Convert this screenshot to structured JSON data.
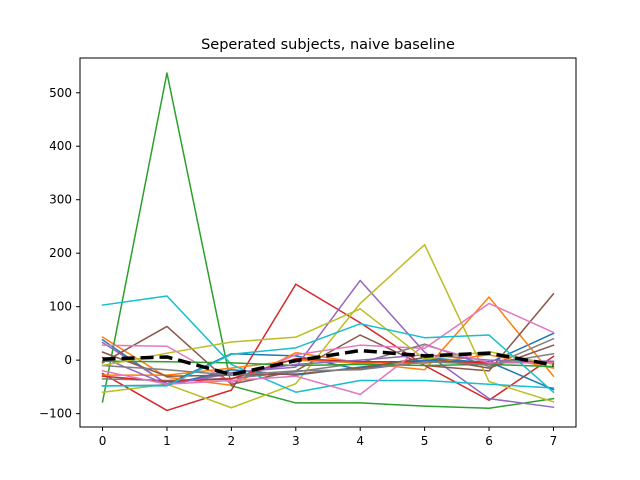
{
  "chart_data": {
    "type": "line",
    "title": "Seperated subjects, naive baseline",
    "xlabel": "",
    "ylabel": "",
    "x": [
      0,
      1,
      2,
      3,
      4,
      5,
      6,
      7
    ],
    "xticks": [
      "0",
      "1",
      "2",
      "3",
      "4",
      "5",
      "6",
      "7"
    ],
    "yticks": [
      "−100",
      "0",
      "100",
      "200",
      "300",
      "400",
      "500"
    ],
    "xlim": [
      -0.35,
      7.35
    ],
    "ylim": [
      -125,
      565
    ],
    "grid": false,
    "legend": "none",
    "series": [
      {
        "color": "#1f77b4",
        "values": [
          38,
          -45,
          12,
          8,
          -18,
          5,
          -5,
          50
        ]
      },
      {
        "color": "#ff7f0e",
        "values": [
          43,
          -32,
          -47,
          14,
          -5,
          -18,
          118,
          -30
        ]
      },
      {
        "color": "#2ca02c",
        "values": [
          -78,
          537,
          -48,
          -80,
          -80,
          -86,
          -90,
          -72
        ]
      },
      {
        "color": "#d62728",
        "values": [
          -25,
          -94,
          -56,
          142,
          70,
          -10,
          -75,
          7
        ]
      },
      {
        "color": "#9467bd",
        "values": [
          33,
          -44,
          -23,
          -13,
          149,
          15,
          -72,
          -88
        ]
      },
      {
        "color": "#8c564b",
        "values": [
          -5,
          63,
          -45,
          -20,
          47,
          -10,
          -20,
          124
        ]
      },
      {
        "color": "#e377c2",
        "values": [
          28,
          26,
          -42,
          10,
          28,
          22,
          106,
          52
        ]
      },
      {
        "color": "#7f7f7f",
        "values": [
          -35,
          -38,
          -34,
          -22,
          -5,
          30,
          -12,
          40
        ]
      },
      {
        "color": "#bcbd22",
        "values": [
          -60,
          -45,
          -89,
          -44,
          106,
          216,
          -40,
          -78
        ]
      },
      {
        "color": "#17becf",
        "values": [
          103,
          120,
          -8,
          -60,
          -38,
          -38,
          -45,
          -52
        ]
      },
      {
        "color": "#1f77b4",
        "values": [
          -48,
          -47,
          -18,
          -28,
          -13,
          0,
          -3,
          -55
        ]
      },
      {
        "color": "#ff7f0e",
        "values": [
          -28,
          -28,
          -15,
          0,
          -5,
          -6,
          10,
          -15
        ]
      },
      {
        "color": "#2ca02c",
        "values": [
          -2,
          -3,
          -5,
          -10,
          -8,
          -10,
          -8,
          -12
        ]
      },
      {
        "color": "#d62728",
        "values": [
          -30,
          -40,
          -35,
          3,
          -3,
          -3,
          -5,
          -3
        ]
      },
      {
        "color": "#9467bd",
        "values": [
          5,
          -46,
          -25,
          -8,
          0,
          10,
          0,
          -2
        ]
      },
      {
        "color": "#8c564b",
        "values": [
          15,
          -30,
          -28,
          -26,
          -15,
          5,
          -15,
          28
        ]
      },
      {
        "color": "#e377c2",
        "values": [
          -20,
          -45,
          -38,
          -30,
          -64,
          28,
          -5,
          -5
        ]
      },
      {
        "color": "#7f7f7f",
        "values": [
          -10,
          -18,
          -28,
          -20,
          -18,
          -3,
          -8,
          12
        ]
      },
      {
        "color": "#bcbd22",
        "values": [
          -10,
          13,
          34,
          43,
          96,
          2,
          16,
          -8
        ]
      },
      {
        "color": "#17becf",
        "values": [
          -48,
          -48,
          11,
          23,
          68,
          42,
          47,
          -60
        ]
      }
    ],
    "mean_series": {
      "color": "#000000",
      "style": "dashed",
      "values": [
        2,
        6,
        -27,
        -1,
        18,
        8,
        13,
        -9
      ]
    }
  }
}
